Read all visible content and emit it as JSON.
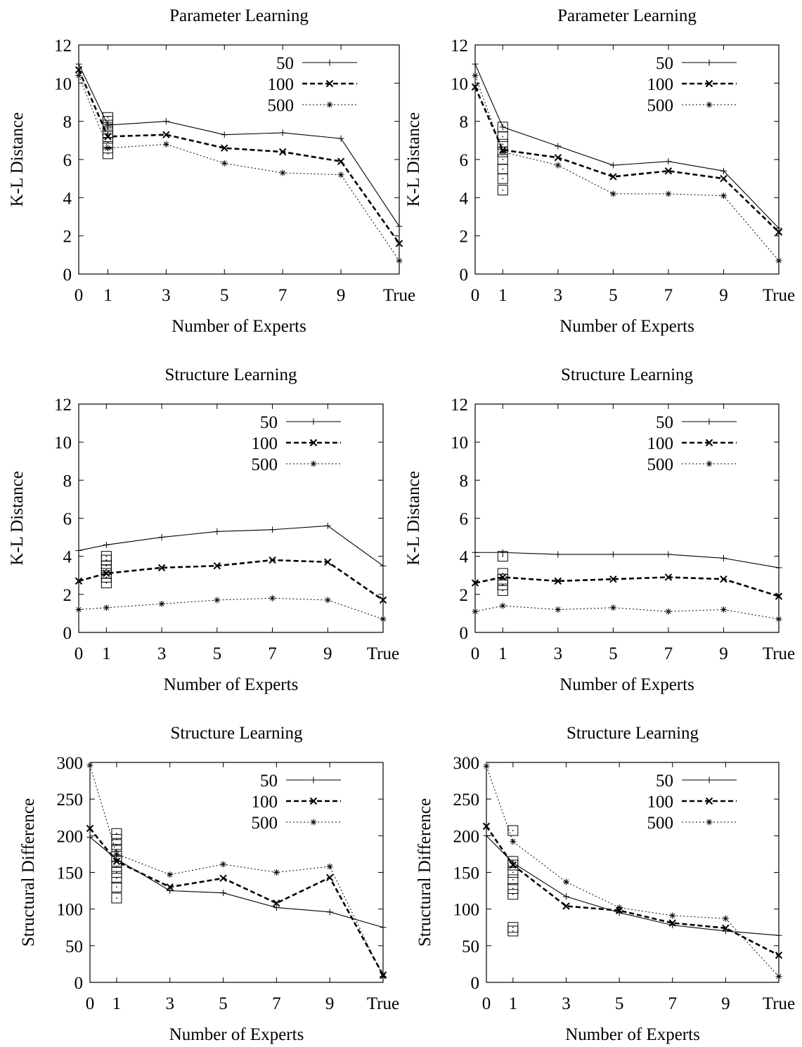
{
  "chart_data": [
    {
      "type": "line",
      "title": "Parameter Learning",
      "xlabel": "Number of Experts",
      "ylabel": "K-L Distance",
      "categories": [
        "0",
        "1",
        "3",
        "5",
        "7",
        "9",
        "True"
      ],
      "ylim": [
        0,
        12
      ],
      "yticks": [
        0,
        2,
        4,
        6,
        8,
        10,
        12
      ],
      "grid": false,
      "legend_position": "top-right",
      "series": [
        {
          "name": "50",
          "style": "thin-solid",
          "marker": "+",
          "values": [
            11.0,
            7.8,
            8.0,
            7.3,
            7.4,
            7.1,
            2.5
          ]
        },
        {
          "name": "100",
          "style": "thick-dashed",
          "marker": "x",
          "values": [
            10.7,
            7.2,
            7.3,
            6.6,
            6.4,
            5.9,
            1.6
          ]
        },
        {
          "name": "500",
          "style": "dotted",
          "marker": "*",
          "values": [
            10.4,
            6.6,
            6.8,
            5.8,
            5.3,
            5.2,
            0.7
          ]
        }
      ],
      "single_expert_boxes": [
        6.3,
        6.6,
        6.9,
        7.2,
        7.4,
        7.6,
        7.8,
        8.0,
        8.2
      ]
    },
    {
      "type": "line",
      "title": "Parameter Learning",
      "xlabel": "Number of Experts",
      "ylabel": "K-L Distance",
      "categories": [
        "0",
        "1",
        "3",
        "5",
        "7",
        "9",
        "True"
      ],
      "ylim": [
        0,
        12
      ],
      "yticks": [
        0,
        2,
        4,
        6,
        8,
        10,
        12
      ],
      "grid": false,
      "legend_position": "top-right",
      "series": [
        {
          "name": "50",
          "style": "thin-solid",
          "marker": "+",
          "values": [
            11.0,
            7.7,
            6.7,
            5.7,
            5.9,
            5.4,
            2.4
          ]
        },
        {
          "name": "100",
          "style": "thick-dashed",
          "marker": "x",
          "values": [
            9.8,
            6.5,
            6.1,
            5.1,
            5.4,
            5.0,
            2.2
          ]
        },
        {
          "name": "500",
          "style": "dotted",
          "marker": "*",
          "values": [
            10.4,
            6.4,
            5.7,
            4.2,
            4.2,
            4.1,
            0.7
          ]
        }
      ],
      "single_expert_boxes": [
        4.4,
        5.0,
        5.5,
        6.0,
        6.4,
        6.8,
        7.2,
        7.7
      ]
    },
    {
      "type": "line",
      "title": "Structure Learning",
      "xlabel": "Number of Experts",
      "ylabel": "K-L Distance",
      "categories": [
        "0",
        "1",
        "3",
        "5",
        "7",
        "9",
        "True"
      ],
      "ylim": [
        0,
        12
      ],
      "yticks": [
        0,
        2,
        4,
        6,
        8,
        10,
        12
      ],
      "grid": false,
      "legend_position": "top-right",
      "series": [
        {
          "name": "50",
          "style": "thin-solid",
          "marker": "+",
          "values": [
            4.3,
            4.6,
            5.0,
            5.3,
            5.4,
            5.6,
            3.5
          ]
        },
        {
          "name": "100",
          "style": "thick-dashed",
          "marker": "x",
          "values": [
            2.7,
            3.1,
            3.4,
            3.5,
            3.8,
            3.7,
            1.7
          ]
        },
        {
          "name": "500",
          "style": "dotted",
          "marker": "*",
          "values": [
            1.2,
            1.3,
            1.5,
            1.7,
            1.8,
            1.7,
            0.7
          ]
        }
      ],
      "single_expert_boxes": [
        2.6,
        2.9,
        3.1,
        3.3,
        3.5,
        3.8,
        4.0
      ]
    },
    {
      "type": "line",
      "title": "Structure Learning",
      "xlabel": "Number of Experts",
      "ylabel": "K-L Distance",
      "categories": [
        "0",
        "1",
        "3",
        "5",
        "7",
        "9",
        "True"
      ],
      "ylim": [
        0,
        12
      ],
      "yticks": [
        0,
        2,
        4,
        6,
        8,
        10,
        12
      ],
      "grid": false,
      "legend_position": "top-right",
      "series": [
        {
          "name": "50",
          "style": "thin-solid",
          "marker": "+",
          "values": [
            4.2,
            4.2,
            4.1,
            4.1,
            4.1,
            3.9,
            3.4
          ]
        },
        {
          "name": "100",
          "style": "thick-dashed",
          "marker": "x",
          "values": [
            2.6,
            2.9,
            2.7,
            2.8,
            2.9,
            2.8,
            1.9
          ]
        },
        {
          "name": "500",
          "style": "dotted",
          "marker": "*",
          "values": [
            1.1,
            1.4,
            1.2,
            1.3,
            1.1,
            1.2,
            0.7
          ]
        }
      ],
      "single_expert_boxes": [
        2.2,
        2.5,
        2.8,
        3.1,
        4.0
      ]
    },
    {
      "type": "line",
      "title": "Structure Learning",
      "xlabel": "Number of Experts",
      "ylabel": "Structural Difference",
      "categories": [
        "0",
        "1",
        "3",
        "5",
        "7",
        "9",
        "True"
      ],
      "ylim": [
        0,
        300
      ],
      "yticks": [
        0,
        50,
        100,
        150,
        200,
        250,
        300
      ],
      "grid": false,
      "legend_position": "top-right",
      "series": [
        {
          "name": "50",
          "style": "thin-solid",
          "marker": "+",
          "values": [
            198,
            168,
            125,
            122,
            102,
            96,
            75
          ]
        },
        {
          "name": "100",
          "style": "thick-dashed",
          "marker": "x",
          "values": [
            210,
            165,
            130,
            142,
            108,
            143,
            10
          ]
        },
        {
          "name": "500",
          "style": "dotted",
          "marker": "*",
          "values": [
            296,
            175,
            147,
            161,
            150,
            158,
            8
          ]
        }
      ],
      "single_expert_boxes": [
        115,
        130,
        142,
        150,
        158,
        165,
        172,
        180,
        188,
        195,
        203
      ]
    },
    {
      "type": "line",
      "title": "Structure Learning",
      "xlabel": "Number of Experts",
      "ylabel": "Structural Difference",
      "categories": [
        "0",
        "1",
        "3",
        "5",
        "7",
        "9",
        "True"
      ],
      "ylim": [
        0,
        300
      ],
      "yticks": [
        0,
        50,
        100,
        150,
        200,
        250,
        300
      ],
      "grid": false,
      "legend_position": "top-right",
      "series": [
        {
          "name": "50",
          "style": "thin-solid",
          "marker": "+",
          "values": [
            200,
            163,
            117,
            95,
            78,
            70,
            64
          ]
        },
        {
          "name": "100",
          "style": "thick-dashed",
          "marker": "x",
          "values": [
            213,
            160,
            104,
            98,
            81,
            74,
            37
          ]
        },
        {
          "name": "500",
          "style": "dotted",
          "marker": "*",
          "values": [
            295,
            192,
            137,
            102,
            91,
            87,
            8
          ]
        }
      ],
      "single_expert_boxes": [
        70,
        75,
        120,
        128,
        140,
        150,
        160,
        165,
        207
      ]
    }
  ]
}
